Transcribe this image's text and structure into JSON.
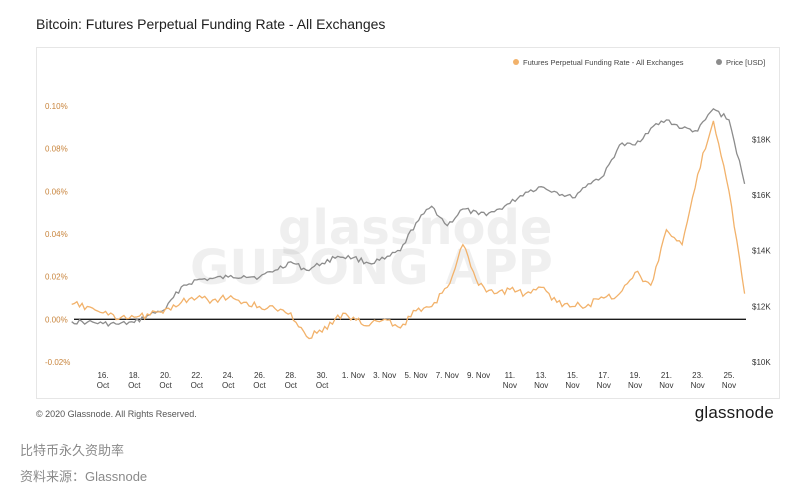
{
  "title": "Bitcoin: Futures Perpetual Funding Rate - All Exchanges",
  "footer": {
    "copyright": "© 2020 Glassnode. All Rights Reserved.",
    "logo": "glassnode"
  },
  "caption": {
    "line1": "比特币永久资助率",
    "line2": "资料来源：Glassnode"
  },
  "watermark": {
    "line1": "glassnode",
    "line2": "GUDONG APP"
  },
  "colors": {
    "funding": "#f2b26b",
    "price": "#8c8c8c",
    "zero_line": "#1a1a1a",
    "left_axis_text": "#c8843c"
  },
  "chart_data": {
    "type": "line",
    "title": "Bitcoin: Futures Perpetual Funding Rate - All Exchanges",
    "legend": {
      "placement": "top-right",
      "entries": [
        "Futures Perpetual Funding Rate - All Exchanges",
        "Price [USD]"
      ]
    },
    "x_tick_labels": [
      [
        "16.",
        "Oct"
      ],
      [
        "18.",
        "Oct"
      ],
      [
        "20.",
        "Oct"
      ],
      [
        "22.",
        "Oct"
      ],
      [
        "24.",
        "Oct"
      ],
      [
        "26.",
        "Oct"
      ],
      [
        "28.",
        "Oct"
      ],
      [
        "30.",
        "Oct"
      ],
      [
        "1. Nov",
        ""
      ],
      [
        "3. Nov",
        ""
      ],
      [
        "5. Nov",
        ""
      ],
      [
        "7. Nov",
        ""
      ],
      [
        "9. Nov",
        ""
      ],
      [
        "11.",
        "Nov"
      ],
      [
        "13.",
        "Nov"
      ],
      [
        "15.",
        "Nov"
      ],
      [
        "17.",
        "Nov"
      ],
      [
        "19.",
        "Nov"
      ],
      [
        "21.",
        "Nov"
      ],
      [
        "23.",
        "Nov"
      ],
      [
        "25.",
        "Nov"
      ]
    ],
    "y_left": {
      "label": "",
      "range": [
        -0.02,
        0.1
      ],
      "ticks": [
        -0.02,
        0.0,
        0.02,
        0.04,
        0.06,
        0.08,
        0.1
      ],
      "tick_labels": [
        "-0.02%",
        "0.00%",
        "0.02%",
        "0.04%",
        "0.06%",
        "0.08%",
        "0.10%"
      ]
    },
    "y_right": {
      "label": "",
      "range": [
        10000,
        19200
      ],
      "ticks": [
        10000,
        12000,
        14000,
        16000,
        18000
      ],
      "tick_labels": [
        "$10K",
        "$12K",
        "$14K",
        "$16K",
        "$18K"
      ]
    },
    "series": [
      {
        "name": "Futures Perpetual Funding Rate - All Exchanges",
        "axis": "left",
        "x": [
          "2020-10-14",
          "2020-10-15",
          "2020-10-16",
          "2020-10-17",
          "2020-10-18",
          "2020-10-19",
          "2020-10-20",
          "2020-10-21",
          "2020-10-22",
          "2020-10-23",
          "2020-10-24",
          "2020-10-25",
          "2020-10-26",
          "2020-10-27",
          "2020-10-28",
          "2020-10-29",
          "2020-10-30",
          "2020-10-31",
          "2020-11-01",
          "2020-11-02",
          "2020-11-03",
          "2020-11-04",
          "2020-11-05",
          "2020-11-06",
          "2020-11-07",
          "2020-11-08",
          "2020-11-09",
          "2020-11-10",
          "2020-11-11",
          "2020-11-12",
          "2020-11-13",
          "2020-11-14",
          "2020-11-15",
          "2020-11-16",
          "2020-11-17",
          "2020-11-18",
          "2020-11-19",
          "2020-11-20",
          "2020-11-21",
          "2020-11-22",
          "2020-11-23",
          "2020-11-24",
          "2020-11-25",
          "2020-11-26"
        ],
        "values": [
          0.007,
          0.006,
          0.003,
          0.0,
          0.001,
          0.002,
          0.005,
          0.008,
          0.01,
          0.009,
          0.01,
          0.008,
          0.006,
          0.005,
          0.003,
          -0.008,
          -0.006,
          0.002,
          0.001,
          -0.003,
          0.0,
          -0.004,
          0.004,
          0.006,
          0.015,
          0.035,
          0.016,
          0.012,
          0.014,
          0.012,
          0.015,
          0.008,
          0.006,
          0.007,
          0.01,
          0.012,
          0.022,
          0.016,
          0.042,
          0.035,
          0.068,
          0.093,
          0.06,
          0.012
        ]
      },
      {
        "name": "Price [USD]",
        "axis": "right",
        "x": [
          "2020-10-14",
          "2020-10-15",
          "2020-10-16",
          "2020-10-17",
          "2020-10-18",
          "2020-10-19",
          "2020-10-20",
          "2020-10-21",
          "2020-10-22",
          "2020-10-23",
          "2020-10-24",
          "2020-10-25",
          "2020-10-26",
          "2020-10-27",
          "2020-10-28",
          "2020-10-29",
          "2020-10-30",
          "2020-10-31",
          "2020-11-01",
          "2020-11-02",
          "2020-11-03",
          "2020-11-04",
          "2020-11-05",
          "2020-11-06",
          "2020-11-07",
          "2020-11-08",
          "2020-11-09",
          "2020-11-10",
          "2020-11-11",
          "2020-11-12",
          "2020-11-13",
          "2020-11-14",
          "2020-11-15",
          "2020-11-16",
          "2020-11-17",
          "2020-11-18",
          "2020-11-19",
          "2020-11-20",
          "2020-11-21",
          "2020-11-22",
          "2020-11-23",
          "2020-11-24",
          "2020-11-25",
          "2020-11-26"
        ],
        "values": [
          11450,
          11430,
          11380,
          11360,
          11420,
          11700,
          11900,
          12700,
          12950,
          13000,
          13050,
          13100,
          13050,
          13300,
          13600,
          13300,
          13550,
          13800,
          13750,
          13550,
          13700,
          14000,
          15000,
          15600,
          14900,
          15500,
          15300,
          15400,
          15700,
          16100,
          16300,
          16100,
          15900,
          16400,
          16700,
          17800,
          17800,
          18400,
          18700,
          18400,
          18300,
          19100,
          18700,
          16400
        ]
      }
    ]
  }
}
